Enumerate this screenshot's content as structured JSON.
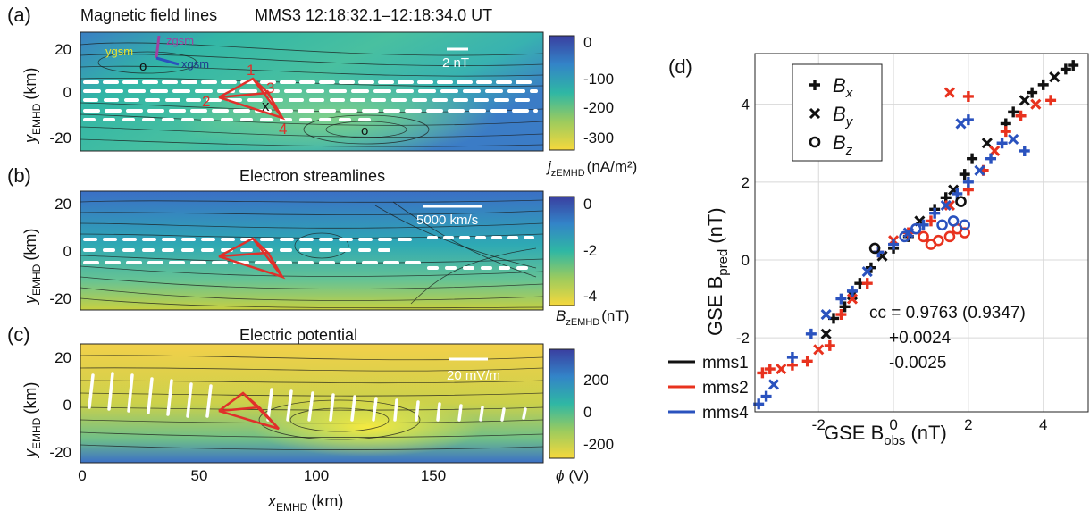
{
  "panels": [
    {
      "letter": "(a)",
      "title": "Magnetic field lines",
      "subtitle": "MMS3   12:18:32.1–12:18:34.0 UT",
      "ylabel": "y",
      "ylabel_sub": "EMHD",
      "ylabel_unit": "(km)",
      "yticks": [
        "20",
        "0",
        "-20"
      ],
      "scale_label": "2 nT",
      "colorbar_ticks": [
        "0",
        "-100",
        "-200",
        "-300"
      ],
      "colorbar_label": "j",
      "colorbar_sub": "zEMHD",
      "colorbar_unit": "(nA/m²)",
      "axes_labels": {
        "y": "ygsm",
        "x": "xgsm",
        "z": "zgsm"
      },
      "markers": {
        "o1": "o",
        "o2": "o",
        "x": "x"
      },
      "tetra_labels": [
        "1",
        "2",
        "3",
        "4"
      ]
    },
    {
      "letter": "(b)",
      "title": "Electron streamlines",
      "ylabel": "y",
      "ylabel_sub": "EMHD",
      "ylabel_unit": "(km)",
      "yticks": [
        "20",
        "0",
        "-20"
      ],
      "scale_label": "5000 km/s",
      "colorbar_ticks": [
        "0",
        "-2",
        "-4"
      ],
      "colorbar_label": "B",
      "colorbar_sub": "zEMHD",
      "colorbar_unit": "(nT)"
    },
    {
      "letter": "(c)",
      "title": "Electric potential",
      "ylabel": "y",
      "ylabel_sub": "EMHD",
      "ylabel_unit": "(km)",
      "yticks": [
        "20",
        "0",
        "-20"
      ],
      "scale_label": "20 mV/m",
      "colorbar_ticks": [
        "200",
        "0",
        "-200"
      ],
      "colorbar_label": "ϕ",
      "colorbar_unit": "(V)",
      "xticks": [
        "0",
        "50",
        "100",
        "150"
      ],
      "xlabel": "x",
      "xlabel_sub": "EMHD",
      "xlabel_unit": "(km)"
    }
  ],
  "chart_data": {
    "type": "scatter",
    "panel_letter": "(d)",
    "xlabel": "GSE B",
    "xlabel_sub": "obs",
    "xlabel_unit": "(nT)",
    "ylabel": "GSE B",
    "ylabel_sub": "pred",
    "ylabel_unit": "(nT)",
    "xlim": [
      -3.7,
      5.2
    ],
    "ylim": [
      -3.9,
      5.3
    ],
    "xticks": [
      -2,
      0,
      2,
      4
    ],
    "yticks": [
      -2,
      0,
      2,
      4
    ],
    "grid": true,
    "marker_legend": [
      {
        "symbol": "+",
        "label": "B",
        "sub": "x"
      },
      {
        "symbol": "x",
        "label": "B",
        "sub": "y"
      },
      {
        "symbol": "o",
        "label": "B",
        "sub": "z"
      }
    ],
    "spacecraft_legend": [
      {
        "name": "mms1",
        "color": "#111111"
      },
      {
        "name": "mms2",
        "color": "#e8321e"
      },
      {
        "name": "mms4",
        "color": "#2a52be"
      }
    ],
    "annotation": [
      "cc = 0.9763 (0.9347)",
      "+0.0024",
      "-0.0025"
    ],
    "series": [
      {
        "name": "mms1",
        "color": "#111111",
        "points": [
          [
            4.8,
            5.0
          ],
          [
            4.6,
            4.9
          ],
          [
            4.3,
            4.7
          ],
          [
            4.0,
            4.5
          ],
          [
            3.7,
            4.3
          ],
          [
            3.5,
            4.1
          ],
          [
            3.2,
            3.8
          ],
          [
            3.0,
            3.5
          ],
          [
            2.5,
            3.0
          ],
          [
            2.1,
            2.6
          ],
          [
            1.9,
            2.2
          ],
          [
            1.6,
            1.8
          ],
          [
            1.4,
            1.6
          ],
          [
            1.1,
            1.3
          ],
          [
            0.7,
            1.0
          ],
          [
            0.4,
            0.6
          ],
          [
            0.0,
            0.3
          ],
          [
            -0.3,
            0.1
          ],
          [
            -0.6,
            -0.2
          ],
          [
            -0.9,
            -0.6
          ],
          [
            -1.1,
            -0.9
          ],
          [
            -1.3,
            -1.2
          ],
          [
            -1.6,
            -1.5
          ],
          [
            -1.8,
            -1.9
          ]
        ]
      },
      {
        "name": "mms2",
        "color": "#e8321e",
        "points": [
          [
            -3.5,
            -2.9
          ],
          [
            -3.3,
            -2.8
          ],
          [
            -3.0,
            -2.8
          ],
          [
            -2.7,
            -2.7
          ],
          [
            -2.3,
            -2.6
          ],
          [
            -2.0,
            -2.3
          ],
          [
            -1.7,
            -2.2
          ],
          [
            -1.4,
            -1.4
          ],
          [
            -1.1,
            -1.0
          ],
          [
            -0.7,
            -0.6
          ],
          [
            -0.4,
            0.2
          ],
          [
            0.0,
            0.5
          ],
          [
            0.4,
            0.7
          ],
          [
            1.0,
            1.0
          ],
          [
            1.5,
            1.4
          ],
          [
            2.0,
            1.8
          ],
          [
            2.4,
            2.3
          ],
          [
            2.7,
            2.8
          ],
          [
            3.0,
            3.3
          ],
          [
            3.4,
            3.7
          ],
          [
            3.8,
            4.0
          ],
          [
            4.2,
            4.1
          ],
          [
            2.0,
            4.2
          ],
          [
            1.5,
            4.3
          ]
        ]
      },
      {
        "name": "mms4",
        "color": "#2a52be",
        "points": [
          [
            -3.6,
            -3.7
          ],
          [
            -3.4,
            -3.5
          ],
          [
            -3.2,
            -3.2
          ],
          [
            -2.7,
            -2.5
          ],
          [
            -2.2,
            -1.9
          ],
          [
            -1.8,
            -1.4
          ],
          [
            -1.4,
            -1.0
          ],
          [
            -1.1,
            -0.8
          ],
          [
            -0.7,
            -0.3
          ],
          [
            -0.4,
            0.2
          ],
          [
            0.0,
            0.4
          ],
          [
            0.4,
            0.7
          ],
          [
            0.8,
            0.9
          ],
          [
            1.1,
            1.2
          ],
          [
            1.4,
            1.4
          ],
          [
            1.7,
            1.7
          ],
          [
            2.0,
            2.0
          ],
          [
            2.3,
            2.3
          ],
          [
            2.6,
            2.6
          ],
          [
            2.9,
            3.0
          ],
          [
            3.2,
            3.1
          ],
          [
            3.5,
            2.8
          ],
          [
            2.0,
            3.6
          ],
          [
            1.8,
            3.5
          ]
        ]
      },
      {
        "name": "mms2-Bz",
        "color": "#e8321e",
        "marker": "o",
        "points": [
          [
            1.0,
            0.4
          ],
          [
            1.2,
            0.5
          ],
          [
            1.5,
            0.6
          ],
          [
            1.7,
            0.8
          ],
          [
            1.9,
            0.7
          ],
          [
            0.8,
            0.6
          ]
        ]
      },
      {
        "name": "mms4-Bz",
        "color": "#2a52be",
        "marker": "o",
        "points": [
          [
            1.3,
            0.9
          ],
          [
            1.6,
            1.0
          ],
          [
            1.9,
            0.9
          ],
          [
            0.3,
            0.6
          ],
          [
            0.6,
            0.8
          ]
        ]
      },
      {
        "name": "mms1-Bz",
        "color": "#111111",
        "marker": "o",
        "points": [
          [
            -0.5,
            0.3
          ],
          [
            1.8,
            1.5
          ]
        ]
      }
    ]
  }
}
